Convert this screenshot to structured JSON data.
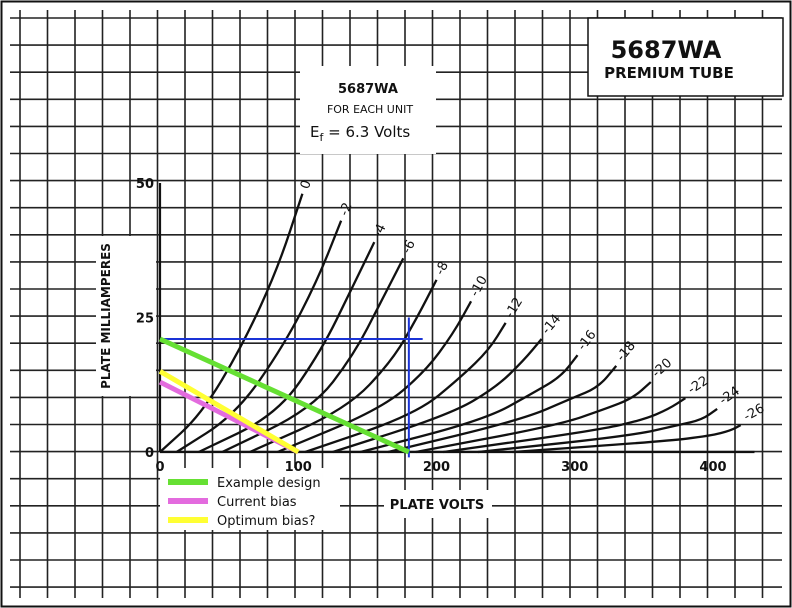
{
  "header": {
    "title": "5687WA",
    "subtitle": "PREMIUM TUBE"
  },
  "inset": {
    "tube": "5687WA",
    "unit_note": "FOR EACH UNIT",
    "filament_prefix": "E",
    "filament_sub": "f",
    "filament_value": " = 6.3 Volts"
  },
  "chart_data": {
    "type": "line",
    "xlabel": "PLATE VOLTS",
    "ylabel": "PLATE MILLIAMPERES",
    "xlim": [
      0,
      430
    ],
    "ylim": [
      0,
      50
    ],
    "x_ticks": [
      "0",
      "100",
      "200",
      "300",
      "400"
    ],
    "x_tick_values": [
      0,
      100,
      200,
      300,
      400
    ],
    "y_ticks": [
      "0",
      "25",
      "50"
    ],
    "y_tick_values": [
      0,
      25,
      50
    ],
    "grid": true,
    "curve_param": "Ec",
    "series": [
      {
        "name": "0",
        "points": [
          [
            0,
            0
          ],
          [
            30,
            7
          ],
          [
            60,
            20
          ],
          [
            85,
            34
          ],
          [
            103,
            48
          ]
        ]
      },
      {
        "name": "-2",
        "points": [
          [
            12,
            0
          ],
          [
            55,
            7
          ],
          [
            90,
            20
          ],
          [
            114,
            32
          ],
          [
            131,
            43
          ]
        ]
      },
      {
        "name": "-4",
        "points": [
          [
            28,
            0
          ],
          [
            85,
            7
          ],
          [
            117,
            19
          ],
          [
            138,
            30
          ],
          [
            155,
            39
          ]
        ]
      },
      {
        "name": "-6",
        "points": [
          [
            45,
            0
          ],
          [
            110,
            8
          ],
          [
            140,
            18
          ],
          [
            160,
            28
          ],
          [
            176,
            36
          ]
        ]
      },
      {
        "name": "-8",
        "points": [
          [
            65,
            0
          ],
          [
            135,
            8
          ],
          [
            168,
            17
          ],
          [
            186,
            25
          ],
          [
            200,
            32
          ]
        ]
      },
      {
        "name": "-10",
        "points": [
          [
            85,
            0
          ],
          [
            160,
            8
          ],
          [
            192,
            15
          ],
          [
            212,
            22
          ],
          [
            225,
            28
          ]
        ]
      },
      {
        "name": "-12",
        "points": [
          [
            105,
            0
          ],
          [
            185,
            7
          ],
          [
            218,
            14
          ],
          [
            238,
            19
          ],
          [
            250,
            24
          ]
        ]
      },
      {
        "name": "-14",
        "points": [
          [
            125,
            0
          ],
          [
            210,
            7
          ],
          [
            243,
            12
          ],
          [
            263,
            17
          ],
          [
            276,
            21
          ]
        ]
      },
      {
        "name": "-16",
        "points": [
          [
            145,
            0
          ],
          [
            235,
            6
          ],
          [
            270,
            11
          ],
          [
            290,
            14
          ],
          [
            302,
            18
          ]
        ]
      },
      {
        "name": "-18",
        "points": [
          [
            165,
            0
          ],
          [
            262,
            6
          ],
          [
            298,
            10
          ],
          [
            317,
            12
          ],
          [
            330,
            16
          ]
        ]
      },
      {
        "name": "-20",
        "points": [
          [
            185,
            0
          ],
          [
            288,
            5
          ],
          [
            322,
            8
          ],
          [
            342,
            10
          ],
          [
            355,
            13
          ]
        ]
      },
      {
        "name": "-22",
        "points": [
          [
            205,
            0
          ],
          [
            315,
            4
          ],
          [
            350,
            6
          ],
          [
            368,
            8
          ],
          [
            380,
            10
          ]
        ]
      },
      {
        "name": "-24",
        "points": [
          [
            230,
            0
          ],
          [
            340,
            3
          ],
          [
            375,
            5
          ],
          [
            392,
            6
          ],
          [
            403,
            8
          ]
        ]
      },
      {
        "name": "-26",
        "points": [
          [
            255,
            0
          ],
          [
            365,
            2
          ],
          [
            398,
            3
          ],
          [
            413,
            4
          ],
          [
            420,
            5
          ]
        ]
      }
    ],
    "overlay_lines": [
      {
        "name": "Example design",
        "color": "#66e033",
        "points": [
          [
            0,
            21
          ],
          [
            180,
            0
          ]
        ]
      },
      {
        "name": "Current bias",
        "color": "#e36bde",
        "points": [
          [
            0,
            13
          ],
          [
            100,
            0
          ]
        ]
      },
      {
        "name": "Optimum bias?",
        "color": "#ffff33",
        "points": [
          [
            0,
            15
          ],
          [
            100,
            0
          ]
        ]
      }
    ],
    "guide_lines": [
      {
        "name": "ref-horizontal",
        "color": "#1a33d6",
        "points": [
          [
            0,
            21
          ],
          [
            190,
            21
          ]
        ]
      },
      {
        "name": "ref-vertical",
        "color": "#1a33d6",
        "points": [
          [
            180,
            25
          ],
          [
            180,
            -1
          ]
        ]
      }
    ],
    "legend": [
      {
        "label": "Example design",
        "color": "#66e033"
      },
      {
        "label": "Current bias",
        "color": "#e36bde"
      },
      {
        "label": "Optimum bias?",
        "color": "#ffff33"
      }
    ],
    "legend_position": "bottom-left"
  }
}
